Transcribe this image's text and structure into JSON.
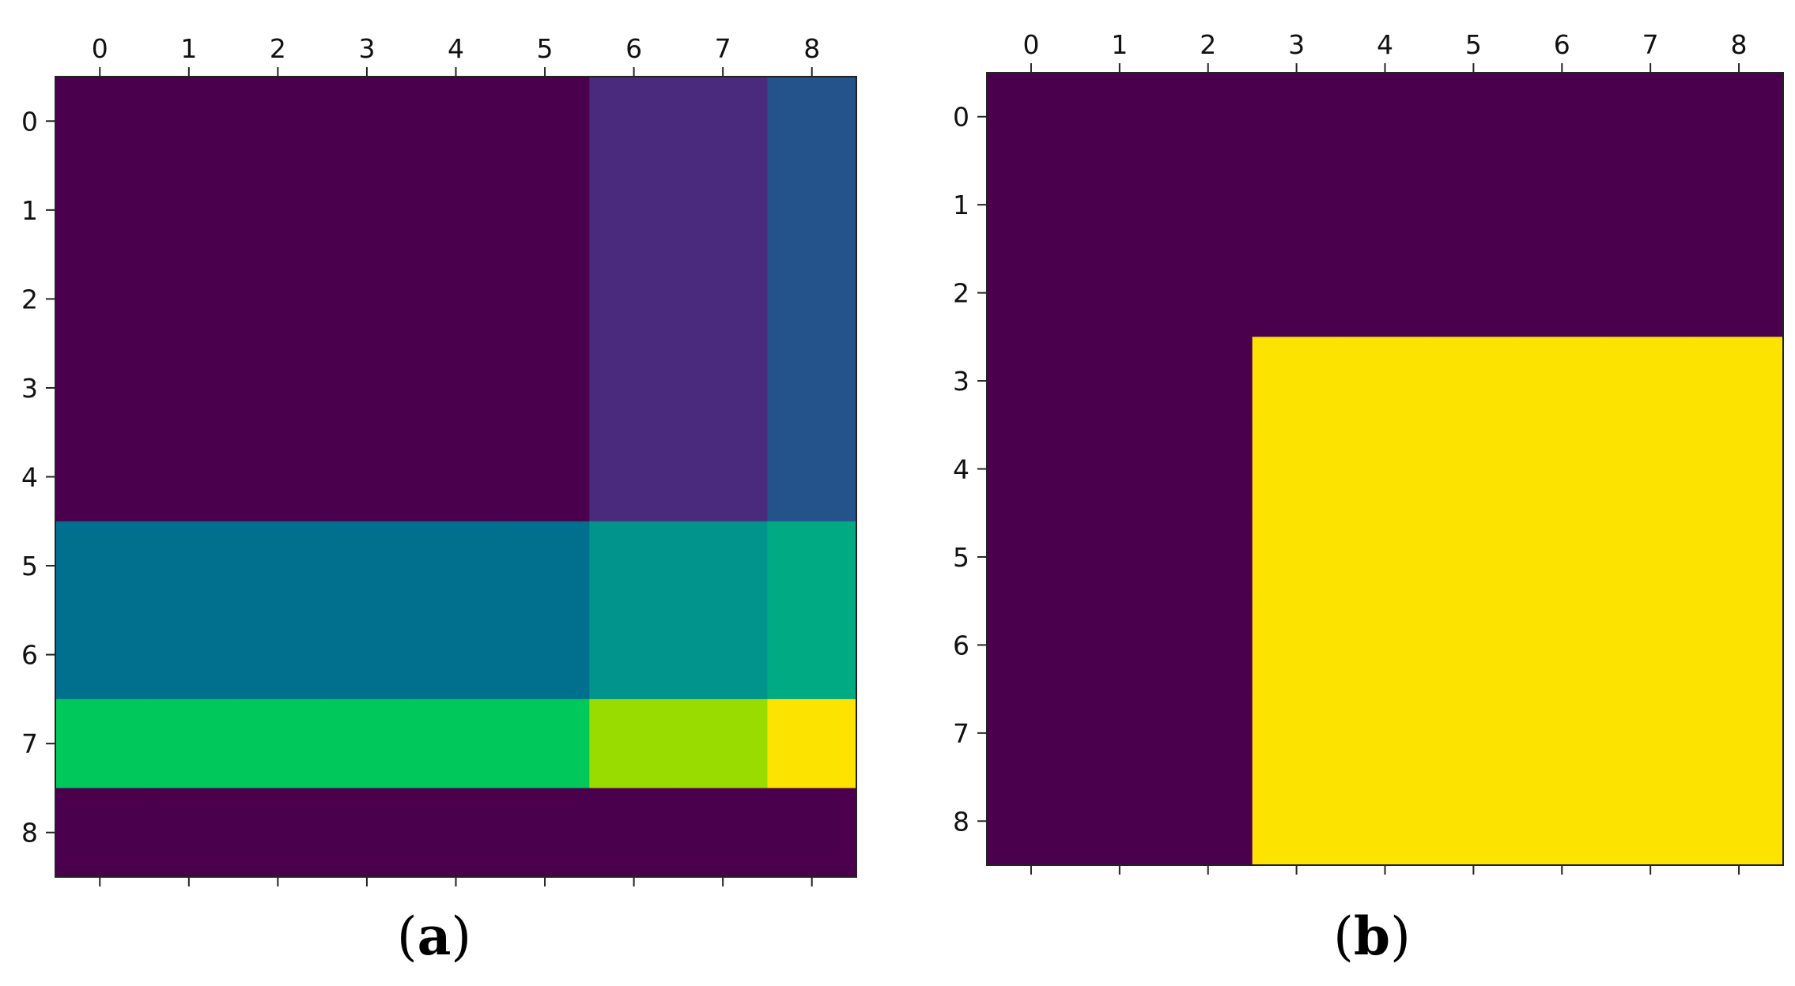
{
  "chart_data": [
    {
      "type": "heatmap",
      "panel_label": "a",
      "caption_open": "(",
      "caption_close": ")",
      "x_ticks": [
        "0",
        "1",
        "2",
        "3",
        "4",
        "5",
        "6",
        "7",
        "8"
      ],
      "y_ticks": [
        "0",
        "1",
        "2",
        "3",
        "4",
        "5",
        "6",
        "7",
        "8"
      ],
      "x_axis_position": "top",
      "grid": false,
      "colormap": "viridis",
      "values": [
        [
          0.0,
          0.0,
          0.0,
          0.0,
          0.0,
          0.0,
          0.12,
          0.12,
          0.25
        ],
        [
          0.0,
          0.0,
          0.0,
          0.0,
          0.0,
          0.0,
          0.12,
          0.12,
          0.25
        ],
        [
          0.0,
          0.0,
          0.0,
          0.0,
          0.0,
          0.0,
          0.12,
          0.12,
          0.25
        ],
        [
          0.0,
          0.0,
          0.0,
          0.0,
          0.0,
          0.0,
          0.12,
          0.12,
          0.25
        ],
        [
          0.0,
          0.0,
          0.0,
          0.0,
          0.0,
          0.0,
          0.12,
          0.12,
          0.25
        ],
        [
          0.38,
          0.38,
          0.38,
          0.38,
          0.38,
          0.38,
          0.5,
          0.5,
          0.62
        ],
        [
          0.38,
          0.38,
          0.38,
          0.38,
          0.38,
          0.38,
          0.5,
          0.5,
          0.62
        ],
        [
          0.75,
          0.75,
          0.75,
          0.75,
          0.75,
          0.75,
          0.88,
          0.88,
          1.0
        ],
        [
          0.0,
          0.0,
          0.0,
          0.0,
          0.0,
          0.0,
          0.0,
          0.0,
          0.0
        ]
      ],
      "cell_colors": [
        [
          "#4b004e",
          "#4b004e",
          "#4b004e",
          "#4b004e",
          "#4b004e",
          "#4b004e",
          "#4a2a7c",
          "#4a2a7c",
          "#24528b"
        ],
        [
          "#4b004e",
          "#4b004e",
          "#4b004e",
          "#4b004e",
          "#4b004e",
          "#4b004e",
          "#4a2a7c",
          "#4a2a7c",
          "#24528b"
        ],
        [
          "#4b004e",
          "#4b004e",
          "#4b004e",
          "#4b004e",
          "#4b004e",
          "#4b004e",
          "#4a2a7c",
          "#4a2a7c",
          "#24528b"
        ],
        [
          "#4b004e",
          "#4b004e",
          "#4b004e",
          "#4b004e",
          "#4b004e",
          "#4b004e",
          "#4a2a7c",
          "#4a2a7c",
          "#24528b"
        ],
        [
          "#4b004e",
          "#4b004e",
          "#4b004e",
          "#4b004e",
          "#4b004e",
          "#4b004e",
          "#4a2a7c",
          "#4a2a7c",
          "#24528b"
        ],
        [
          "#00708f",
          "#00708f",
          "#00708f",
          "#00708f",
          "#00708f",
          "#00708f",
          "#00948d",
          "#00948d",
          "#00ab84"
        ],
        [
          "#00708f",
          "#00708f",
          "#00708f",
          "#00708f",
          "#00708f",
          "#00708f",
          "#00948d",
          "#00948d",
          "#00ab84"
        ],
        [
          "#00c85a",
          "#00c85a",
          "#00c85a",
          "#00c85a",
          "#00c85a",
          "#00c85a",
          "#98dc00",
          "#98dc00",
          "#fde300"
        ],
        [
          "#4b004e",
          "#4b004e",
          "#4b004e",
          "#4b004e",
          "#4b004e",
          "#4b004e",
          "#4b004e",
          "#4b004e",
          "#4b004e"
        ]
      ]
    },
    {
      "type": "heatmap",
      "panel_label": "b",
      "caption_open": "(",
      "caption_close": ")",
      "x_ticks": [
        "0",
        "1",
        "2",
        "3",
        "4",
        "5",
        "6",
        "7",
        "8"
      ],
      "y_ticks": [
        "0",
        "1",
        "2",
        "3",
        "4",
        "5",
        "6",
        "7",
        "8"
      ],
      "x_axis_position": "top",
      "grid": false,
      "colormap": "viridis",
      "values": [
        [
          0,
          0,
          0,
          0,
          0,
          0,
          0,
          0,
          0
        ],
        [
          0,
          0,
          0,
          0,
          0,
          0,
          0,
          0,
          0
        ],
        [
          0,
          0,
          0,
          0,
          0,
          0,
          0,
          0,
          0
        ],
        [
          0,
          0,
          0,
          1,
          1,
          1,
          1,
          1,
          1
        ],
        [
          0,
          0,
          0,
          1,
          1,
          1,
          1,
          1,
          1
        ],
        [
          0,
          0,
          0,
          1,
          1,
          1,
          1,
          1,
          1
        ],
        [
          0,
          0,
          0,
          1,
          1,
          1,
          1,
          1,
          1
        ],
        [
          0,
          0,
          0,
          1,
          1,
          1,
          1,
          1,
          1
        ],
        [
          0,
          0,
          0,
          1,
          1,
          1,
          1,
          1,
          1
        ]
      ],
      "cell_colors": [
        [
          "#4b004e",
          "#4b004e",
          "#4b004e",
          "#4b004e",
          "#4b004e",
          "#4b004e",
          "#4b004e",
          "#4b004e",
          "#4b004e"
        ],
        [
          "#4b004e",
          "#4b004e",
          "#4b004e",
          "#4b004e",
          "#4b004e",
          "#4b004e",
          "#4b004e",
          "#4b004e",
          "#4b004e"
        ],
        [
          "#4b004e",
          "#4b004e",
          "#4b004e",
          "#4b004e",
          "#4b004e",
          "#4b004e",
          "#4b004e",
          "#4b004e",
          "#4b004e"
        ],
        [
          "#4b004e",
          "#4b004e",
          "#4b004e",
          "#fde300",
          "#fde300",
          "#fde300",
          "#fde300",
          "#fde300",
          "#fde300"
        ],
        [
          "#4b004e",
          "#4b004e",
          "#4b004e",
          "#fde300",
          "#fde300",
          "#fde300",
          "#fde300",
          "#fde300",
          "#fde300"
        ],
        [
          "#4b004e",
          "#4b004e",
          "#4b004e",
          "#fde300",
          "#fde300",
          "#fde300",
          "#fde300",
          "#fde300",
          "#fde300"
        ],
        [
          "#4b004e",
          "#4b004e",
          "#4b004e",
          "#fde300",
          "#fde300",
          "#fde300",
          "#fde300",
          "#fde300",
          "#fde300"
        ],
        [
          "#4b004e",
          "#4b004e",
          "#4b004e",
          "#fde300",
          "#fde300",
          "#fde300",
          "#fde300",
          "#fde300",
          "#fde300"
        ],
        [
          "#4b004e",
          "#4b004e",
          "#4b004e",
          "#fde300",
          "#fde300",
          "#fde300",
          "#fde300",
          "#fde300",
          "#fde300"
        ]
      ]
    }
  ]
}
